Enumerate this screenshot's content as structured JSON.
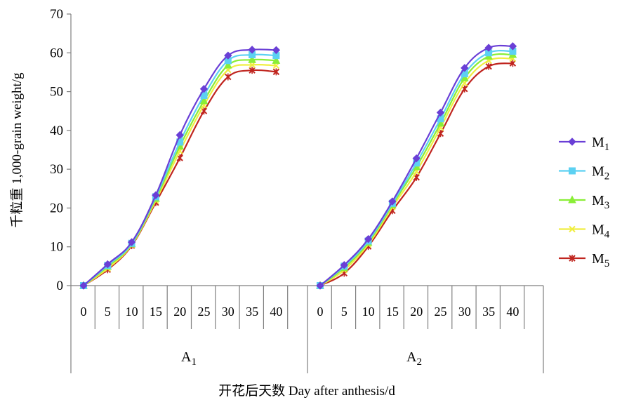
{
  "chart_data": {
    "type": "line",
    "ylabel": "千粒重 1,000-grain weight/g",
    "xlabel": "开花后天数 Day after anthesis/d",
    "ylim": [
      0,
      70
    ],
    "yticks": [
      "0",
      "10",
      "20",
      "30",
      "40",
      "50",
      "60",
      "70"
    ],
    "categories": [
      "0",
      "5",
      "10",
      "15",
      "20",
      "25",
      "30",
      "35",
      "40"
    ],
    "groups": [
      {
        "label": "A",
        "sub": "1"
      },
      {
        "label": "A",
        "sub": "2"
      }
    ],
    "legend_position": "right",
    "series": [
      {
        "name": "M",
        "sub": "1",
        "color": "#6a3fd6",
        "marker": "diamond",
        "values": [
          [
            0,
            5.5,
            11.2,
            23.3,
            38.8,
            50.7,
            59.3,
            60.8,
            60.7
          ],
          [
            0,
            5.3,
            12.0,
            21.7,
            32.8,
            44.6,
            56.1,
            61.3,
            61.7
          ]
        ]
      },
      {
        "name": "M",
        "sub": "2",
        "color": "#5cd1f2",
        "marker": "square",
        "values": [
          [
            0,
            5.2,
            10.9,
            22.9,
            37.0,
            49.0,
            58.0,
            59.5,
            59.3
          ],
          [
            0,
            5.0,
            11.5,
            21.2,
            31.6,
            43.0,
            54.6,
            60.0,
            60.4
          ]
        ]
      },
      {
        "name": "M",
        "sub": "3",
        "color": "#8aee37",
        "marker": "triangle",
        "values": [
          [
            0,
            4.9,
            10.7,
            22.4,
            35.9,
            47.6,
            56.8,
            58.2,
            58.0
          ],
          [
            0,
            4.6,
            11.1,
            20.8,
            30.6,
            41.8,
            53.5,
            59.1,
            59.5
          ]
        ]
      },
      {
        "name": "M",
        "sub": "4",
        "color": "#f0ee40",
        "marker": "x",
        "values": [
          [
            0,
            4.4,
            10.5,
            21.9,
            34.7,
            46.5,
            55.6,
            56.9,
            56.7
          ],
          [
            0,
            4.0,
            10.6,
            20.2,
            29.4,
            40.7,
            52.2,
            58.0,
            58.5
          ]
        ]
      },
      {
        "name": "M",
        "sub": "5",
        "color": "#c0251f",
        "marker": "star",
        "values": [
          [
            0,
            4.1,
            10.3,
            21.4,
            32.9,
            45.0,
            53.8,
            55.5,
            55.1
          ],
          [
            0,
            3.2,
            10.1,
            19.3,
            27.9,
            39.2,
            50.7,
            56.5,
            57.3
          ]
        ]
      }
    ]
  }
}
